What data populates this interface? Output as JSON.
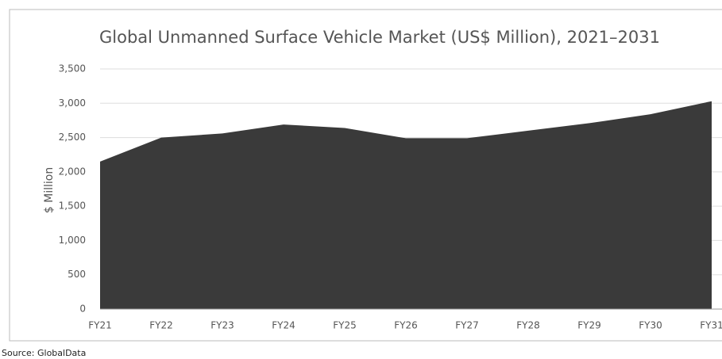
{
  "chart_data": {
    "type": "area",
    "title": "Global Unmanned Surface Vehicle Market (US$ Million), 2021–2031",
    "y_label": "$ Million",
    "source": "Source: GlobalData",
    "categories": [
      "FY21",
      "FY22",
      "FY23",
      "FY24",
      "FY25",
      "FY26",
      "FY27",
      "FY28",
      "FY29",
      "FY30",
      "FY31"
    ],
    "values": [
      2150,
      2500,
      2560,
      2690,
      2640,
      2490,
      2490,
      2600,
      2710,
      2840,
      3030
    ],
    "color": "#3a3a3a",
    "ylim": [
      0,
      3500
    ],
    "yticks": [
      0,
      {
        "value": 500,
        "label": "500"
      },
      {
        "value": 1000,
        "label": "1,000"
      },
      {
        "value": 1500,
        "label": "1,500"
      },
      {
        "value": 2000,
        "label": "2,000"
      },
      {
        "value": 2500,
        "label": "2,500"
      },
      {
        "value": 3000,
        "label": "3,000"
      },
      {
        "value": 3500,
        "label": "3,500"
      }
    ],
    "grid": true
  }
}
